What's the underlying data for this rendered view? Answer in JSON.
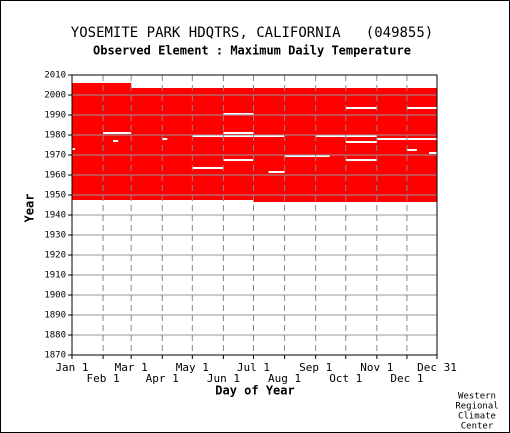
{
  "chart_data": {
    "type": "availability",
    "title": "YOSEMITE PARK HDQTRS, CALIFORNIA   (049855)",
    "subtitle": "Observed Element : Maximum Daily Temperature",
    "x_label": "Day of Year",
    "y_label": "Year",
    "credit": [
      "Western",
      "Regional",
      "Climate",
      "Center"
    ],
    "color": "#ff0000",
    "xlim": [
      1,
      365
    ],
    "ylim": [
      1870,
      2010
    ],
    "xticks": [
      {
        "value": 1,
        "label": "Jan 1"
      },
      {
        "value": 32,
        "label": "Feb 1"
      },
      {
        "value": 60,
        "label": "Mar 1"
      },
      {
        "value": 91,
        "label": "Apr 1"
      },
      {
        "value": 121,
        "label": "May 1"
      },
      {
        "value": 152,
        "label": "Jun 1"
      },
      {
        "value": 182,
        "label": "Jul 1"
      },
      {
        "value": 213,
        "label": "Aug 1"
      },
      {
        "value": 244,
        "label": "Sep 1"
      },
      {
        "value": 274,
        "label": "Oct 1"
      },
      {
        "value": 305,
        "label": "Nov 1"
      },
      {
        "value": 335,
        "label": "Dec 1"
      },
      {
        "value": 365,
        "label": "Dec 31"
      }
    ],
    "yticks": [
      1870,
      1880,
      1890,
      1900,
      1910,
      1920,
      1930,
      1940,
      1950,
      1960,
      1970,
      1980,
      1990,
      2000,
      2010
    ],
    "blocks": [
      {
        "x": [
          1,
          182
        ],
        "y": [
          1947.5,
          2003.5
        ]
      },
      {
        "x": [
          182,
          365
        ],
        "y": [
          1946.5,
          2003.5
        ]
      },
      {
        "x": [
          1,
          60
        ],
        "y": [
          2003.5,
          2006
        ]
      }
    ],
    "gaps": [
      {
        "x": [
          32,
          60
        ],
        "year": 1981
      },
      {
        "x": [
          42,
          47
        ],
        "year": 1977
      },
      {
        "x": [
          1,
          4
        ],
        "year": 1973
      },
      {
        "x": [
          91,
          96
        ],
        "year": 1978
      },
      {
        "x": [
          121,
          152
        ],
        "year": 1963.5
      },
      {
        "x": [
          152,
          182
        ],
        "year": 1990.5
      },
      {
        "x": [
          152,
          182
        ],
        "year": 1981
      },
      {
        "x": [
          121,
          213
        ],
        "year": 1979.5
      },
      {
        "x": [
          152,
          182
        ],
        "year": 1967.5
      },
      {
        "x": [
          197,
          213
        ],
        "year": 1961.5
      },
      {
        "x": [
          213,
          258
        ],
        "year": 1969.5
      },
      {
        "x": [
          244,
          305
        ],
        "year": 1979.5
      },
      {
        "x": [
          274,
          305
        ],
        "year": 1993.5
      },
      {
        "x": [
          274,
          305
        ],
        "year": 1976.5
      },
      {
        "x": [
          274,
          305
        ],
        "year": 1967.5
      },
      {
        "x": [
          305,
          365
        ],
        "year": 1978
      },
      {
        "x": [
          335,
          365
        ],
        "year": 1993.5
      },
      {
        "x": [
          335,
          345
        ],
        "year": 1972.5
      },
      {
        "x": [
          357,
          365
        ],
        "year": 1971
      }
    ]
  }
}
